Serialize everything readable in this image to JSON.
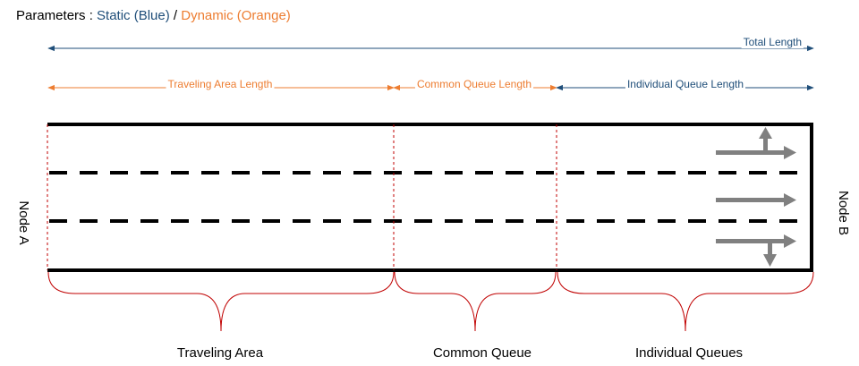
{
  "legend": {
    "prefix": "Parameters : ",
    "static_label": "Static (Blue)",
    "separator": " / ",
    "dynamic_label": "Dynamic (Orange)"
  },
  "dimensions": {
    "total_length": "Total Length",
    "traveling_area_length": "Traveling Area Length",
    "common_queue_length": "Common Queue Length",
    "individual_queue_length": "Individual Queue Length"
  },
  "nodes": {
    "start": "Node A",
    "end": "Node B"
  },
  "sections": {
    "traveling_area": "Traveling Area",
    "common_queue": "Common Queue",
    "individual_queues": "Individual Queues"
  },
  "colors": {
    "static": "#1f4e79",
    "dynamic": "#ed7d31",
    "road": "#000000",
    "divider": "#c00000",
    "arrow": "#808080",
    "text": "#000000"
  },
  "lanes": [
    {
      "movement": "left-turn-and-through"
    },
    {
      "movement": "through"
    },
    {
      "movement": "right-turn-and-through"
    }
  ]
}
